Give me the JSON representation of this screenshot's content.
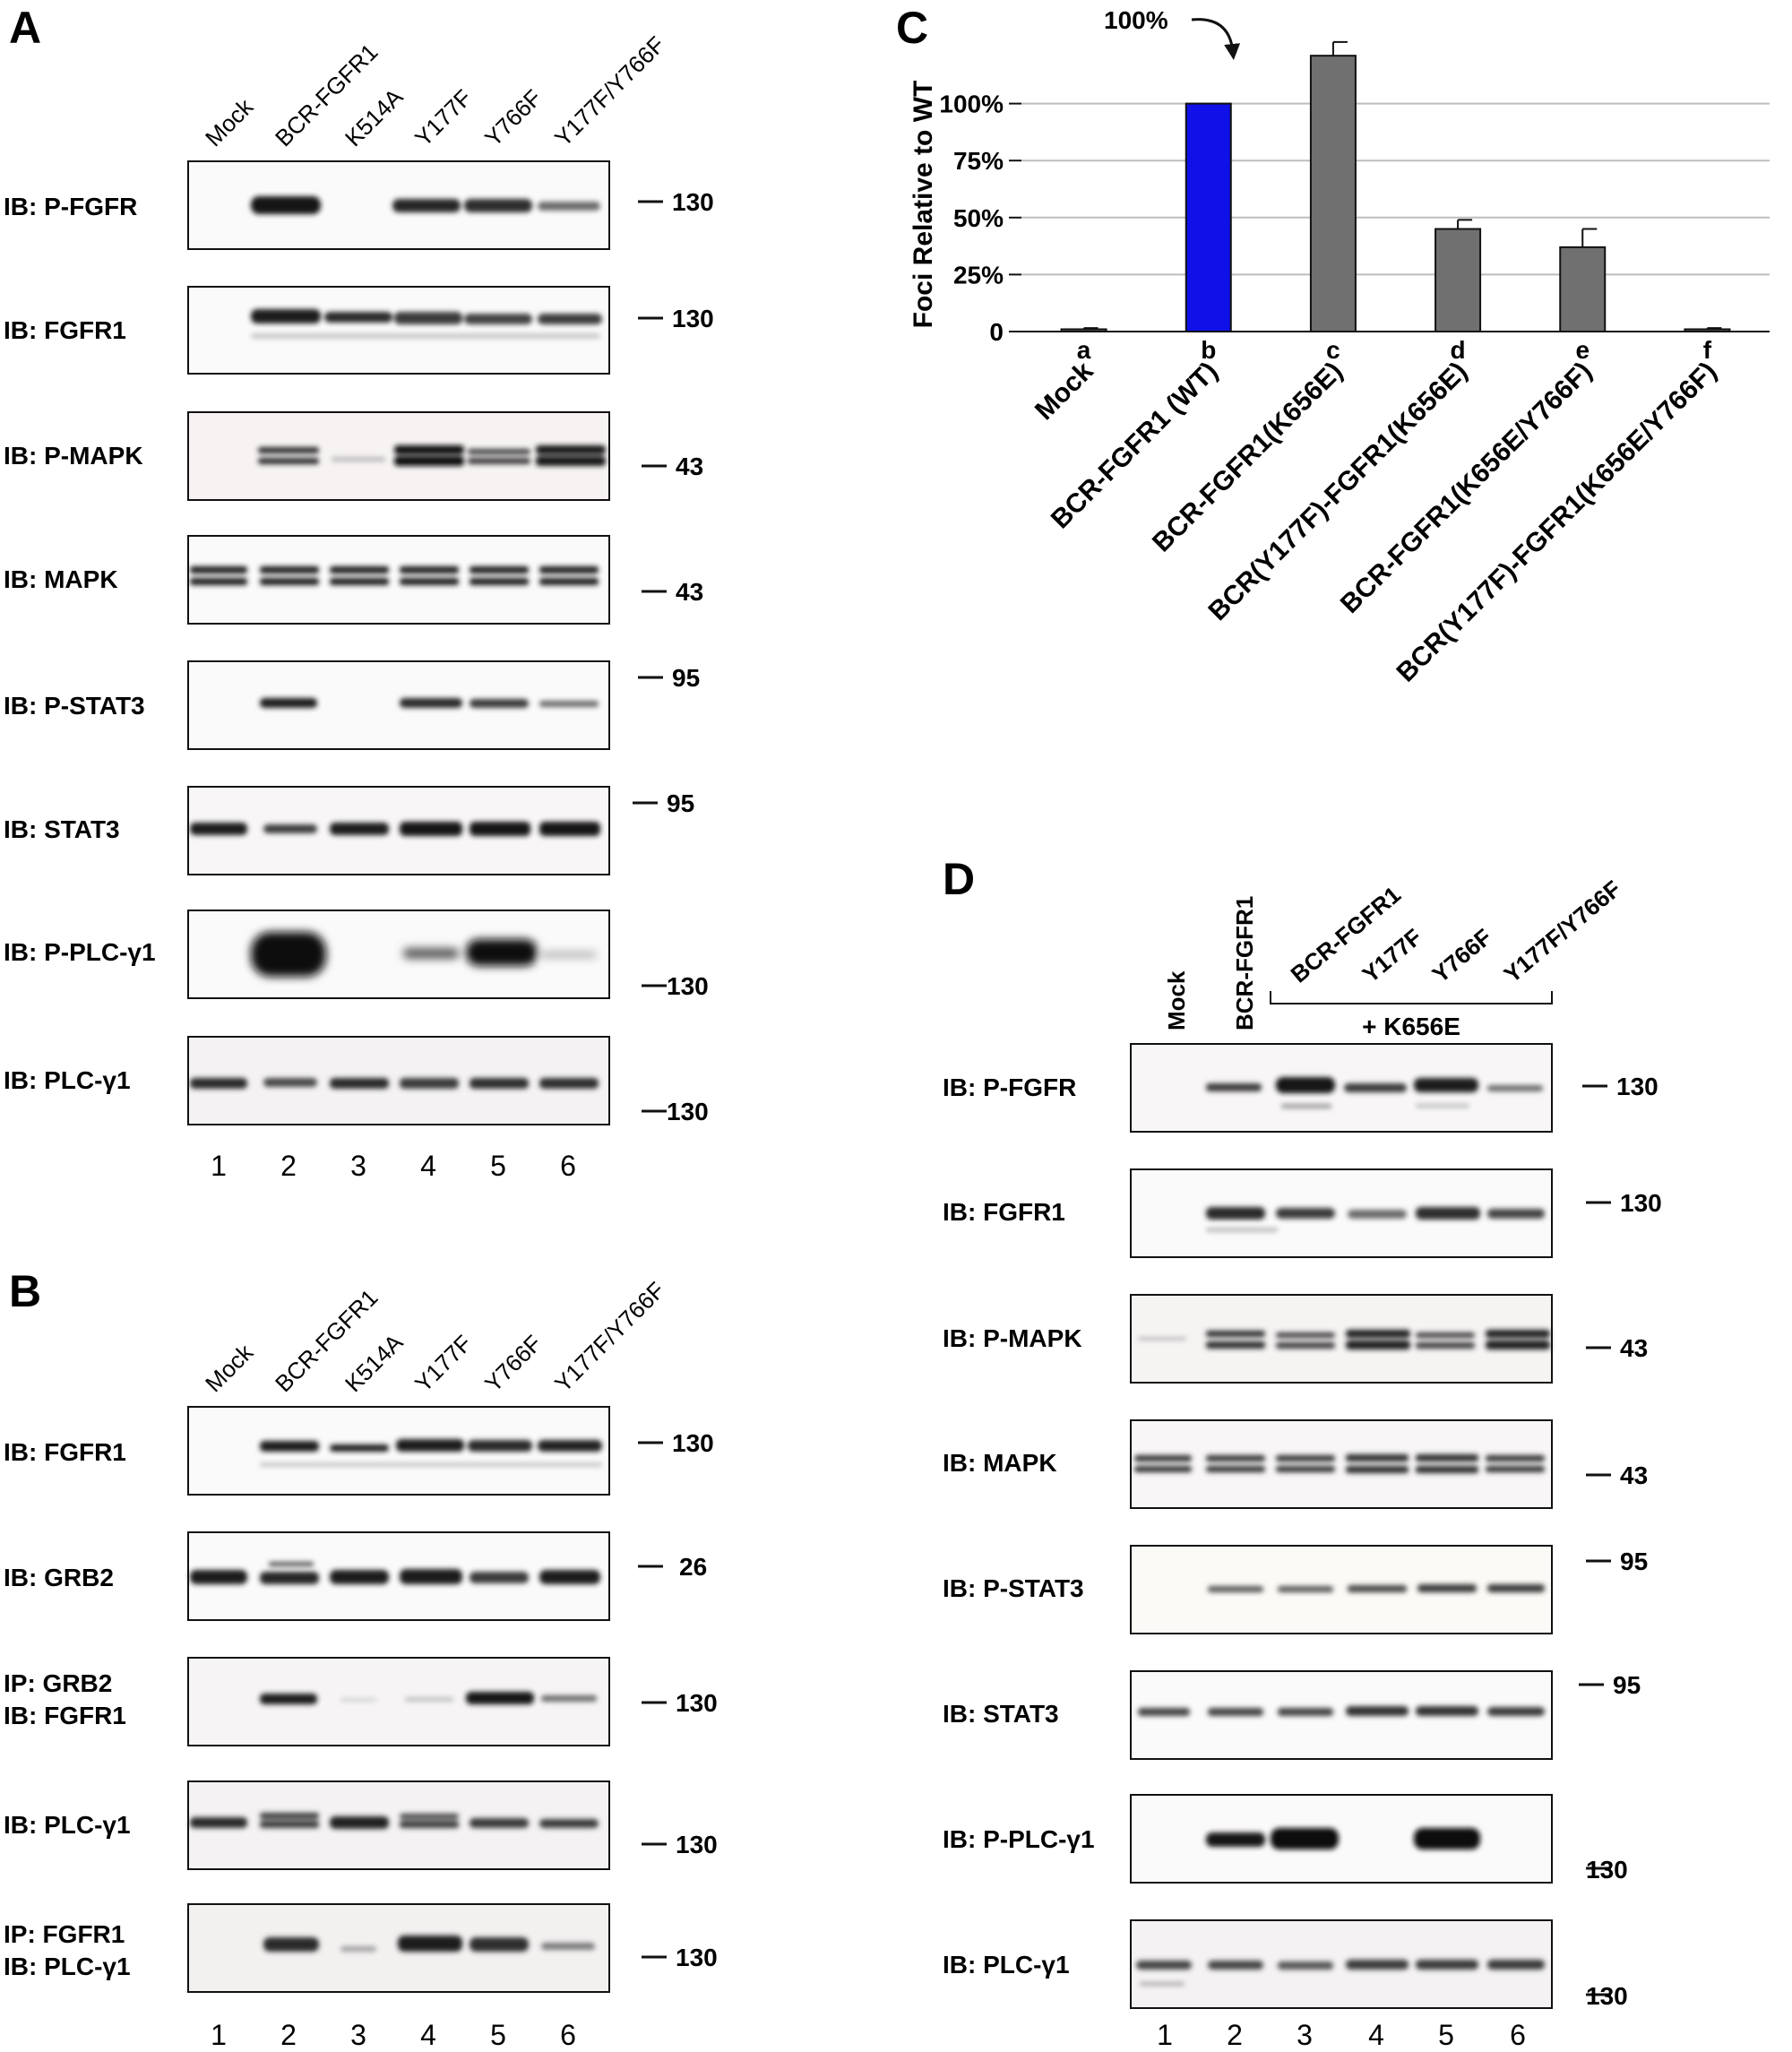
{
  "panels": {
    "A": {
      "letter": "A",
      "lanes": [
        "Mock",
        "BCR-FGFR1",
        "K514A",
        "Y177F",
        "Y766F",
        "Y177F/Y766F"
      ],
      "lane_numbers": [
        "1",
        "2",
        "3",
        "4",
        "5",
        "6"
      ],
      "blots": [
        {
          "label_lines": [
            "IB: P-FGFR"
          ],
          "marker": "130"
        },
        {
          "label_lines": [
            "IB: FGFR1"
          ],
          "marker": "130"
        },
        {
          "label_lines": [
            "IB: P-MAPK"
          ],
          "marker": "43"
        },
        {
          "label_lines": [
            "IB: MAPK"
          ],
          "marker": "43"
        },
        {
          "label_lines": [
            "IB: P-STAT3"
          ],
          "marker": "95"
        },
        {
          "label_lines": [
            "IB: STAT3"
          ],
          "marker": "95"
        },
        {
          "label_lines": [
            "IB: P-PLC-γ1"
          ],
          "marker": "130"
        },
        {
          "label_lines": [
            "IB: PLC-γ1"
          ],
          "marker": "130"
        }
      ]
    },
    "B": {
      "letter": "B",
      "lanes": [
        "Mock",
        "BCR-FGFR1",
        "K514A",
        "Y177F",
        "Y766F",
        "Y177F/Y766F"
      ],
      "lane_numbers": [
        "1",
        "2",
        "3",
        "4",
        "5",
        "6"
      ],
      "blots": [
        {
          "label_lines": [
            "IB: FGFR1"
          ],
          "marker": "130"
        },
        {
          "label_lines": [
            "IB: GRB2"
          ],
          "marker": "26"
        },
        {
          "label_lines": [
            "IP: GRB2",
            "IB: FGFR1"
          ],
          "marker": "130"
        },
        {
          "label_lines": [
            "IB: PLC-γ1"
          ],
          "marker": "130"
        },
        {
          "label_lines": [
            "IP: FGFR1",
            "IB: PLC-γ1"
          ],
          "marker": "130"
        }
      ]
    },
    "C": {
      "letter": "C",
      "annotation": "100%"
    },
    "D": {
      "letter": "D",
      "lanes": [
        "Mock",
        "BCR-FGFR1",
        "BCR-FGFR1",
        "Y177F",
        "Y766F",
        "Y177F/Y766F"
      ],
      "bracket_label": "+ K656E",
      "lane_numbers": [
        "1",
        "2",
        "3",
        "4",
        "5",
        "6"
      ],
      "blots": [
        {
          "label_lines": [
            "IB: P-FGFR"
          ],
          "marker": "130"
        },
        {
          "label_lines": [
            "IB: FGFR1"
          ],
          "marker": "130"
        },
        {
          "label_lines": [
            "IB: P-MAPK"
          ],
          "marker": "43"
        },
        {
          "label_lines": [
            "IB: MAPK"
          ],
          "marker": "43"
        },
        {
          "label_lines": [
            "IB: P-STAT3"
          ],
          "marker": "95"
        },
        {
          "label_lines": [
            "IB: STAT3"
          ],
          "marker": "95"
        },
        {
          "label_lines": [
            "IB: P-PLC-γ1"
          ],
          "marker": "130"
        },
        {
          "label_lines": [
            "IB: PLC-γ1"
          ],
          "marker": "130"
        }
      ]
    }
  },
  "chart_data": {
    "type": "bar",
    "categories": [
      "Mock",
      "BCR-FGFR1 (WT)",
      "BCR-FGFR1(K656E)",
      "BCR(Y177F)-FGFR1(K656E)",
      "BCR-FGFR1(K656E/Y766F)",
      "BCR(Y177F)-FGFR1(K656E/Y766F)"
    ],
    "letters": [
      "a",
      "b",
      "c",
      "d",
      "e",
      "f"
    ],
    "values": [
      1,
      100,
      121,
      45,
      37,
      1
    ],
    "errors": [
      0.5,
      0,
      6,
      4,
      8,
      0.5
    ],
    "colors": [
      "#707070",
      "#1010e8",
      "#707070",
      "#707070",
      "#707070",
      "#707070"
    ],
    "ylabel": "Foci Relative to WT",
    "yticks": [
      0,
      25,
      50,
      75,
      100
    ],
    "ytick_labels": [
      "0",
      "25%",
      "50%",
      "75%",
      "100%"
    ],
    "ylim": [
      0,
      125
    ],
    "grid": true
  }
}
